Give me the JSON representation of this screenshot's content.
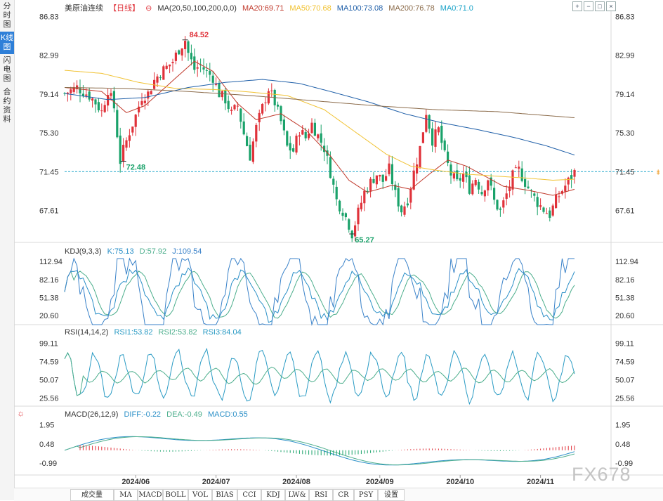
{
  "sidebar": {
    "tabs": [
      {
        "label": "分时图",
        "active": false
      },
      {
        "label": "K线图",
        "active": true
      },
      {
        "label": "闪电图",
        "active": false
      },
      {
        "label": "合约资料",
        "active": false
      }
    ]
  },
  "header": {
    "symbol": "美原油连续",
    "period": "【日线】",
    "ma_params": "MA(20,50,100,200,0,0)",
    "ma20": "MA20:69.71",
    "ma50": "MA50:70.68",
    "ma100": "MA100:73.08",
    "ma200": "MA200:76.78",
    "ma0": "MA0:71.0",
    "controls": [
      "zoom-in",
      "zoom-out",
      "fullscreen",
      "close"
    ]
  },
  "colors": {
    "up": "#e0323a",
    "down": "#1aa26a",
    "ma20": "#c0392b",
    "ma50": "#f1c232",
    "ma100": "#1f5fa8",
    "ma200": "#8b6b4a",
    "kdj_k": "#2a8fc7",
    "kdj_d": "#4cae8c",
    "kdj_j": "#3a82c9",
    "rsi": "#2a9bc4",
    "current": "#1aa3c8",
    "accent": "#2e7fd8"
  },
  "main_chart": {
    "y_ticks": [
      "86.83",
      "82.99",
      "79.14",
      "75.30",
      "71.45",
      "67.61"
    ],
    "current_price": "71.45",
    "high_label": "84.52",
    "low_label": "65.27",
    "left_low_label": "72.48"
  },
  "kdj": {
    "params": "KDJ(9,3,3)",
    "k": "K:75.13",
    "d": "D:57.92",
    "j": "J:109.54",
    "y_ticks": [
      "112.94",
      "82.16",
      "51.38",
      "20.60"
    ]
  },
  "rsi": {
    "params": "RSI(14,14,2)",
    "rsi1": "RSI1:53.82",
    "rsi2": "RSI2:53.82",
    "rsi3": "RSI3:84.04",
    "y_ticks": [
      "99.11",
      "74.59",
      "50.07",
      "25.56"
    ]
  },
  "macd": {
    "params": "MACD(26,12,9)",
    "diff": "DIFF:-0.22",
    "dea": "DEA:-0.49",
    "macd": "MACD:0.55",
    "y_ticks": [
      "1.95",
      "0.48",
      "-0.99"
    ]
  },
  "x_axis": {
    "labels": [
      "2024/06",
      "2024/07",
      "2024/08",
      "2024/09",
      "2024/10",
      "2024/11"
    ]
  },
  "watermark": "FX678",
  "toolbar": {
    "buttons": [
      "成交量",
      "MA",
      "MACD",
      "BOLL",
      "VOL",
      "BIAS",
      "CCI",
      "KDJ",
      "LW&",
      "RSI",
      "CR",
      "PSY",
      "设置"
    ]
  },
  "chart_data": {
    "type": "candlestick",
    "title": "美原油连续 日线",
    "ylim": [
      64.5,
      87.5
    ],
    "y_ticks": [
      86.83,
      82.99,
      79.14,
      75.3,
      71.45,
      67.61
    ],
    "x_labels": [
      "2024/06",
      "2024/07",
      "2024/08",
      "2024/09",
      "2024/10",
      "2024/11"
    ],
    "close_path": [
      [
        0,
        79.2
      ],
      [
        4,
        79.8
      ],
      [
        8,
        79.0
      ],
      [
        10,
        78.3
      ],
      [
        12,
        77.4
      ],
      [
        14,
        79.6
      ],
      [
        16,
        77.8
      ],
      [
        18,
        72.5
      ],
      [
        19,
        73.6
      ],
      [
        21,
        75.4
      ],
      [
        23,
        77.0
      ],
      [
        25,
        78.9
      ],
      [
        27,
        79.2
      ],
      [
        29,
        80.5
      ],
      [
        31,
        81.3
      ],
      [
        33,
        81.8
      ],
      [
        35,
        82.4
      ],
      [
        37,
        83.6
      ],
      [
        39,
        84.5
      ],
      [
        40,
        83.2
      ],
      [
        42,
        81.6
      ],
      [
        44,
        82.0
      ],
      [
        46,
        81.3
      ],
      [
        48,
        80.8
      ],
      [
        50,
        79.2
      ],
      [
        52,
        78.6
      ],
      [
        54,
        77.2
      ],
      [
        56,
        78.0
      ],
      [
        58,
        75.2
      ],
      [
        60,
        73.0
      ],
      [
        62,
        75.8
      ],
      [
        64,
        77.8
      ],
      [
        66,
        79.7
      ],
      [
        68,
        78.3
      ],
      [
        70,
        76.4
      ],
      [
        72,
        73.9
      ],
      [
        74,
        73.5
      ],
      [
        76,
        75.6
      ],
      [
        78,
        74.8
      ],
      [
        80,
        76.2
      ],
      [
        82,
        75.0
      ],
      [
        84,
        73.8
      ],
      [
        86,
        71.4
      ],
      [
        88,
        68.6
      ],
      [
        90,
        67.6
      ],
      [
        92,
        66.2
      ],
      [
        93,
        65.3
      ],
      [
        95,
        67.4
      ],
      [
        97,
        69.4
      ],
      [
        99,
        70.4
      ],
      [
        101,
        71.2
      ],
      [
        103,
        70.5
      ],
      [
        105,
        71.7
      ],
      [
        107,
        69.2
      ],
      [
        109,
        67.6
      ],
      [
        111,
        68.7
      ],
      [
        113,
        71.4
      ],
      [
        115,
        73.8
      ],
      [
        117,
        77.4
      ],
      [
        119,
        74.6
      ],
      [
        121,
        75.6
      ],
      [
        123,
        73.0
      ],
      [
        125,
        71.2
      ],
      [
        127,
        70.3
      ],
      [
        129,
        71.2
      ],
      [
        131,
        69.8
      ],
      [
        133,
        70.8
      ],
      [
        135,
        69.4
      ],
      [
        137,
        70.8
      ],
      [
        139,
        68.5
      ],
      [
        141,
        67.5
      ],
      [
        143,
        69.2
      ],
      [
        145,
        71.0
      ],
      [
        147,
        71.6
      ],
      [
        149,
        70.4
      ],
      [
        151,
        69.3
      ],
      [
        153,
        68.4
      ],
      [
        155,
        67.7
      ],
      [
        157,
        67.2
      ],
      [
        159,
        68.6
      ],
      [
        161,
        69.6
      ],
      [
        163,
        70.5
      ],
      [
        165,
        71.4
      ]
    ],
    "high": 84.52,
    "low": 65.27,
    "series": [
      {
        "name": "MA20",
        "value": 69.71,
        "path": [
          [
            0,
            79.8
          ],
          [
            12,
            79.4
          ],
          [
            20,
            77.3
          ],
          [
            26,
            78.0
          ],
          [
            34,
            80.2
          ],
          [
            42,
            82.4
          ],
          [
            48,
            81.4
          ],
          [
            56,
            78.2
          ],
          [
            62,
            76.6
          ],
          [
            70,
            77.2
          ],
          [
            78,
            75.6
          ],
          [
            86,
            73.0
          ],
          [
            92,
            70.6
          ],
          [
            98,
            69.4
          ],
          [
            106,
            70.1
          ],
          [
            112,
            69.7
          ],
          [
            118,
            71.2
          ],
          [
            124,
            72.6
          ],
          [
            130,
            72.0
          ],
          [
            136,
            71.0
          ],
          [
            142,
            70.0
          ],
          [
            150,
            69.6
          ],
          [
            158,
            69.1
          ],
          [
            165,
            69.7
          ]
        ]
      },
      {
        "name": "MA50",
        "value": 70.68,
        "path": [
          [
            0,
            81.5
          ],
          [
            12,
            81.2
          ],
          [
            24,
            80.3
          ],
          [
            36,
            79.7
          ],
          [
            48,
            79.6
          ],
          [
            58,
            79.4
          ],
          [
            72,
            79.0
          ],
          [
            84,
            77.6
          ],
          [
            94,
            75.4
          ],
          [
            104,
            73.2
          ],
          [
            112,
            72.0
          ],
          [
            120,
            71.6
          ],
          [
            130,
            71.2
          ],
          [
            140,
            71.0
          ],
          [
            150,
            70.8
          ],
          [
            158,
            70.6
          ],
          [
            165,
            70.7
          ]
        ]
      },
      {
        "name": "MA100",
        "value": 73.08,
        "path": [
          [
            0,
            79.2
          ],
          [
            14,
            78.6
          ],
          [
            26,
            78.8
          ],
          [
            40,
            79.8
          ],
          [
            52,
            80.3
          ],
          [
            64,
            80.6
          ],
          [
            76,
            80.2
          ],
          [
            86,
            79.4
          ],
          [
            98,
            78.4
          ],
          [
            110,
            77.2
          ],
          [
            122,
            76.3
          ],
          [
            134,
            75.6
          ],
          [
            146,
            74.8
          ],
          [
            156,
            74.0
          ],
          [
            165,
            73.1
          ]
        ]
      },
      {
        "name": "MA200",
        "value": 76.78,
        "path": [
          [
            0,
            79.8
          ],
          [
            20,
            79.7
          ],
          [
            40,
            79.4
          ],
          [
            60,
            79.0
          ],
          [
            80,
            78.5
          ],
          [
            100,
            78.0
          ],
          [
            120,
            77.6
          ],
          [
            140,
            77.4
          ],
          [
            165,
            76.8
          ]
        ]
      }
    ],
    "indicators": {
      "KDJ": {
        "K": 75.13,
        "D": 57.92,
        "J": 109.54,
        "ylim": [
          5,
          118
        ]
      },
      "RSI": {
        "RSI1": 53.82,
        "RSI2": 53.82,
        "RSI3": 84.04,
        "ylim": [
          15,
          105
        ]
      },
      "MACD": {
        "DIFF": -0.22,
        "DEA": -0.49,
        "MACD": 0.55,
        "ylim": [
          -1.9,
          2.2
        ]
      }
    }
  }
}
